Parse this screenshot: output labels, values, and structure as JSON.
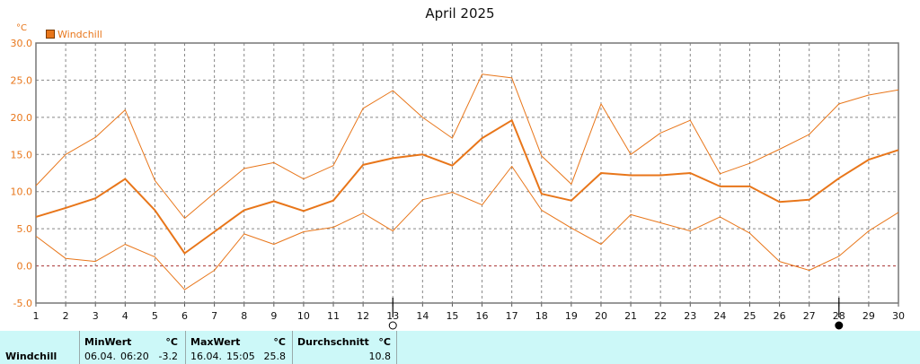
{
  "title": "April 2025",
  "unit_label": "°C",
  "legend": {
    "label": "Windchill",
    "color": "#e8761a"
  },
  "chart_data": {
    "type": "line",
    "title": "April 2025",
    "ylabel": "°C",
    "ylim": [
      -5,
      30
    ],
    "y_ticks": [
      "30.0",
      "25.0",
      "20.0",
      "15.0",
      "10.0",
      "5.0",
      "0.0",
      "-5.0"
    ],
    "x": [
      1,
      2,
      3,
      4,
      5,
      6,
      7,
      8,
      9,
      10,
      11,
      12,
      13,
      14,
      15,
      16,
      17,
      18,
      19,
      20,
      21,
      22,
      23,
      24,
      25,
      26,
      27,
      28,
      29,
      30
    ],
    "x_ticks": [
      "1",
      "2",
      "3",
      "4",
      "5",
      "6",
      "7",
      "8",
      "9",
      "10",
      "11",
      "12",
      "13",
      "14",
      "15",
      "16",
      "17",
      "18",
      "19",
      "20",
      "21",
      "22",
      "23",
      "24",
      "25",
      "26",
      "27",
      "28",
      "29",
      "30"
    ],
    "grid": true,
    "series": [
      {
        "name": "Windchill",
        "role": "max",
        "color": "#e8761a",
        "width": 1,
        "values": [
          10.8,
          15.0,
          17.3,
          21.0,
          11.5,
          6.4,
          9.8,
          13.1,
          13.9,
          11.7,
          13.5,
          21.2,
          23.6,
          20.0,
          17.2,
          25.8,
          25.3,
          14.8,
          11.0,
          21.8,
          15.0,
          17.9,
          19.6,
          12.4,
          13.8,
          15.7,
          17.7,
          21.8,
          23.0,
          23.7
        ]
      },
      {
        "name": "Windchill",
        "role": "avg",
        "color": "#e8761a",
        "width": 2,
        "values": [
          6.6,
          7.8,
          9.1,
          11.7,
          7.5,
          1.7,
          4.6,
          7.5,
          8.7,
          7.4,
          8.8,
          13.6,
          14.5,
          15.0,
          13.5,
          17.2,
          19.6,
          9.7,
          8.8,
          12.5,
          12.2,
          12.2,
          12.5,
          10.7,
          10.7,
          8.6,
          8.9,
          11.8,
          14.3,
          15.6
        ]
      },
      {
        "name": "Windchill",
        "role": "min",
        "color": "#e8761a",
        "width": 1,
        "values": [
          4.0,
          1.0,
          0.6,
          2.9,
          1.2,
          -3.2,
          -0.6,
          4.3,
          2.9,
          4.6,
          5.2,
          7.1,
          4.7,
          8.9,
          9.9,
          8.2,
          13.4,
          7.5,
          5.1,
          2.9,
          6.9,
          5.8,
          4.7,
          6.6,
          4.4,
          0.6,
          -0.6,
          1.3,
          4.7,
          7.2
        ]
      }
    ],
    "moon_markers": [
      {
        "day": 13,
        "phase": "full"
      },
      {
        "day": 28,
        "phase": "new"
      }
    ]
  },
  "table": {
    "row_label": "Windchill",
    "min": {
      "header": "MinWert",
      "unit": "°C",
      "date": "06.04.",
      "time": "06:20",
      "value": "-3.2"
    },
    "max": {
      "header": "MaxWert",
      "unit": "°C",
      "date": "16.04.",
      "time": "15:05",
      "value": "25.8"
    },
    "avg": {
      "header": "Durchschnitt",
      "unit": "°C",
      "value": "10.8"
    }
  }
}
